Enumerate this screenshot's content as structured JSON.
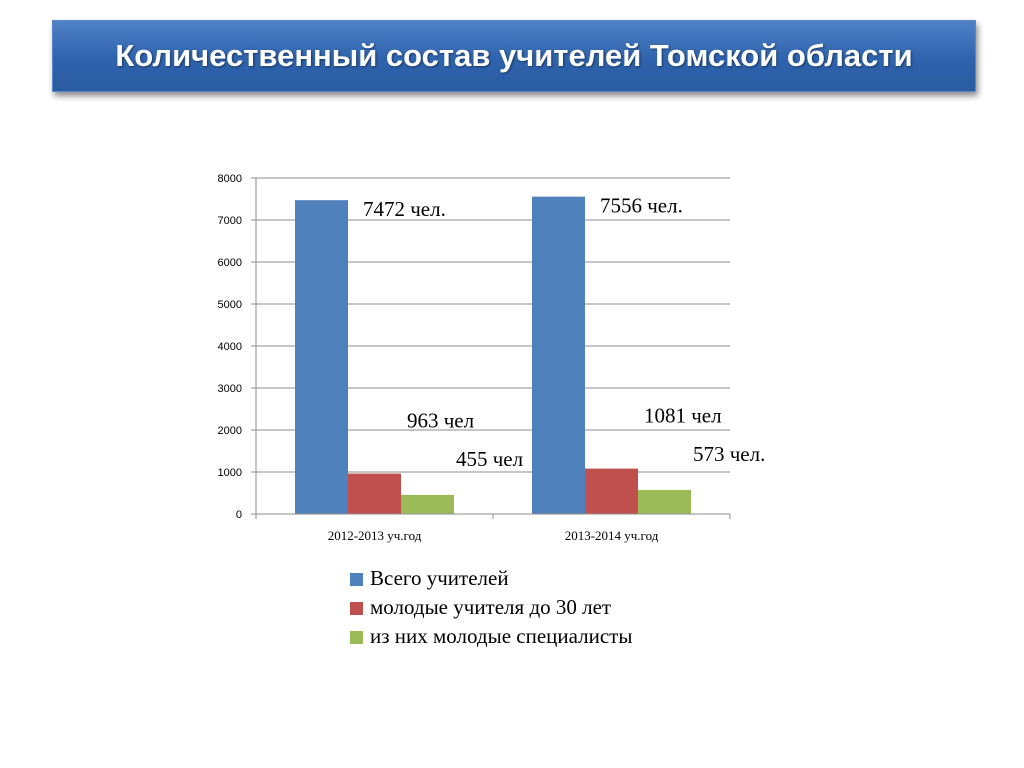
{
  "slide": {
    "title": "Количественный состав учителей Томской области"
  },
  "colors": {
    "banner": "#2e63ad",
    "series": [
      "#4f81bd",
      "#c0504d",
      "#9bbb59"
    ]
  },
  "chart_data": {
    "type": "bar",
    "categories": [
      "2012-2013 уч.год",
      "2013-2014 уч.год"
    ],
    "series": [
      {
        "name": "Всего учителей",
        "values": [
          7472,
          7556
        ],
        "labels": [
          "7472 чел.",
          "7556 чел."
        ]
      },
      {
        "name": "молодые учителя до 30 лет",
        "values": [
          963,
          1081
        ],
        "labels": [
          "963 чел",
          "1081  чел"
        ]
      },
      {
        "name": "из них молодые специалисты",
        "values": [
          455,
          573
        ],
        "labels": [
          "455 чел",
          "573 чел."
        ]
      }
    ],
    "ylim": [
      0,
      8000
    ],
    "yticks": [
      0,
      1000,
      2000,
      3000,
      4000,
      5000,
      6000,
      7000,
      8000
    ],
    "grid": true,
    "legend": "bottom"
  }
}
